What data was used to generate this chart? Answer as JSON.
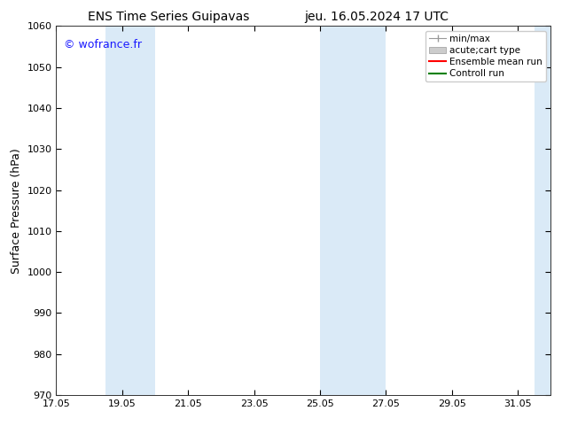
{
  "title_left": "ENS Time Series Guipavas",
  "title_right": "jeu. 16.05.2024 17 UTC",
  "ylabel": "Surface Pressure (hPa)",
  "ylim": [
    970,
    1060
  ],
  "yticks": [
    970,
    980,
    990,
    1000,
    1010,
    1020,
    1030,
    1040,
    1050,
    1060
  ],
  "xlim": [
    17.05,
    32.05
  ],
  "xticks": [
    17.05,
    19.05,
    21.05,
    23.05,
    25.05,
    27.05,
    29.05,
    31.05
  ],
  "xticklabels": [
    "17.05",
    "19.05",
    "21.05",
    "23.05",
    "25.05",
    "27.05",
    "29.05",
    "31.05"
  ],
  "watermark": "© wofrance.fr",
  "watermark_color": "#1a1aff",
  "background_color": "#ffffff",
  "plot_bg_color": "#ffffff",
  "shaded_bands": [
    {
      "xmin": 18.55,
      "xmax": 20.05,
      "color": "#daeaf7"
    },
    {
      "xmin": 25.05,
      "xmax": 27.05,
      "color": "#daeaf7"
    },
    {
      "xmin": 31.55,
      "xmax": 32.05,
      "color": "#daeaf7"
    }
  ],
  "legend_entries": [
    {
      "label": "min/max",
      "type": "errorbar"
    },
    {
      "label": "acute;cart type",
      "type": "fill"
    },
    {
      "label": "Ensemble mean run",
      "type": "line",
      "color": "#ff0000"
    },
    {
      "label": "Controll run",
      "type": "line",
      "color": "#008000"
    }
  ],
  "title_fontsize": 10,
  "ylabel_fontsize": 9,
  "tick_fontsize": 8,
  "legend_fontsize": 7.5,
  "watermark_fontsize": 9
}
